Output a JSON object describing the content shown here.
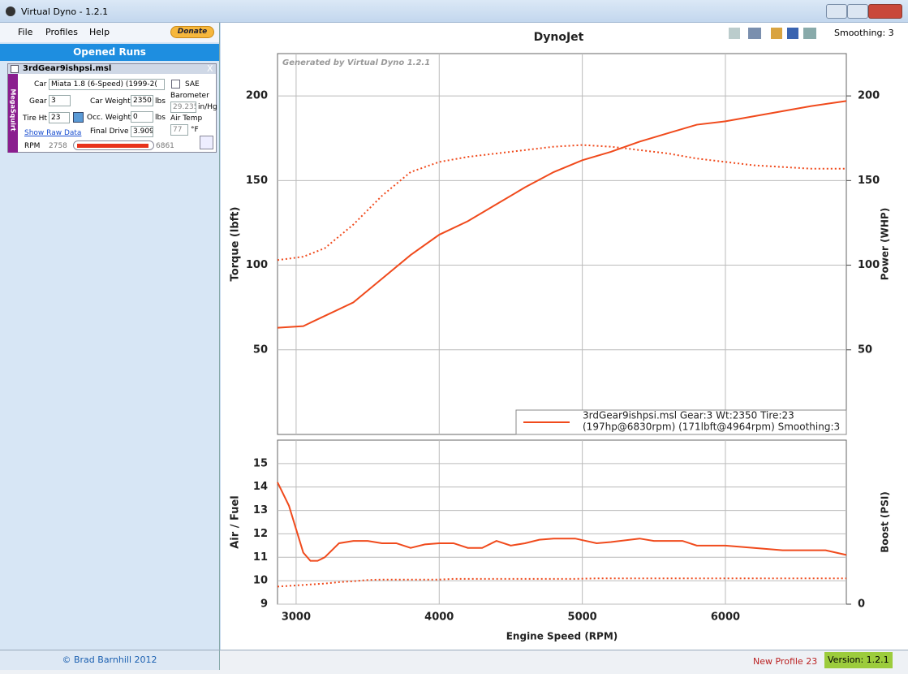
{
  "window": {
    "title": "Virtual Dyno - 1.2.1"
  },
  "menu": [
    "File",
    "Profiles",
    "Help"
  ],
  "donate": "Donate",
  "runs_header": "Opened Runs",
  "run": {
    "file": "3rdGear9ishpsi.msl",
    "close": "X",
    "ecu": "MegaSquirt",
    "car_label": "Car",
    "car": "Miata 1.8 (6-Speed) (1999-2(",
    "sae": "SAE",
    "gear_label": "Gear",
    "gear": "3",
    "car_weight_label": "Car Weight",
    "car_weight": "2350",
    "lbs": "lbs",
    "barometer_label": "Barometer",
    "barometer": "29.235",
    "barometer_unit": "in/Hg",
    "tire_label": "Tire Ht",
    "tire": "23",
    "occ_weight_label": "Occ. Weight",
    "occ_weight": "0",
    "air_temp_label": "Air Temp",
    "air_temp": "77",
    "air_temp_unit": "°F",
    "raw_data": "Show Raw Data",
    "final_drive_label": "Final Drive",
    "final_drive": "3.909",
    "rpm_label": "RPM",
    "rpm_min": "2758",
    "rpm_max": "6861"
  },
  "toolbar": {
    "smoothing": "Smoothing: 3"
  },
  "status": {
    "copyright": "© Brad Barnhill 2012",
    "profile": "New Profile 23",
    "version": "Version: 1.2.1"
  },
  "chart_data": [
    {
      "type": "line",
      "title": "DynoJet",
      "annotation": "Generated by Virtual Dyno 1.2.1",
      "ylabel": "Torque (lbft)",
      "y2label": "Power (WHP)",
      "x": [
        2870,
        3050,
        3200,
        3400,
        3600,
        3800,
        4000,
        4200,
        4400,
        4600,
        4800,
        5000,
        5200,
        5400,
        5600,
        5800,
        6000,
        6200,
        6400,
        6600,
        6845
      ],
      "series": [
        {
          "color": "#f04a1c",
          "style": "dotted",
          "values": [
            103,
            105,
            110,
            124,
            141,
            155,
            161,
            164,
            166,
            168,
            170,
            171,
            170,
            168,
            166,
            163,
            161,
            159,
            158,
            157,
            157
          ]
        },
        {
          "color": "#f04a1c",
          "style": "solid",
          "axis": "y2",
          "values": [
            63,
            64,
            70,
            78,
            92,
            106,
            118,
            126,
            136,
            146,
            155,
            162,
            167,
            173,
            178,
            183,
            185,
            188,
            191,
            194,
            197
          ]
        }
      ],
      "legend": [
        "3rdGear9ishpsi.msl Gear:3 Wt:2350 Tire:23",
        "(197hp@6830rpm) (171lbft@4964rpm) Smoothing:3"
      ],
      "xlim": [
        2870,
        6845
      ],
      "xticks": [
        3000,
        4000,
        5000,
        6000
      ],
      "ylim": [
        0,
        225
      ],
      "yticks": [
        50,
        100,
        150,
        200
      ],
      "y2lim": [
        0,
        225
      ],
      "y2ticks": [
        50,
        100,
        150,
        200
      ],
      "grid": true
    },
    {
      "type": "line",
      "ylabel": "Air / Fuel",
      "y2label": "Boost (PSI)",
      "xlabel": "Engine Speed (RPM)",
      "x": [
        2870,
        2950,
        3000,
        3050,
        3100,
        3150,
        3200,
        3300,
        3400,
        3500,
        3600,
        3700,
        3800,
        3900,
        4000,
        4100,
        4200,
        4300,
        4400,
        4500,
        4600,
        4700,
        4800,
        4950,
        5100,
        5200,
        5400,
        5500,
        5700,
        5800,
        6000,
        6200,
        6400,
        6600,
        6700,
        6845
      ],
      "series": [
        {
          "color": "#f04a1c",
          "style": "solid",
          "values": [
            14.2,
            13.2,
            12.2,
            11.2,
            10.85,
            10.85,
            11.0,
            11.6,
            11.7,
            11.7,
            11.6,
            11.6,
            11.4,
            11.55,
            11.6,
            11.6,
            11.4,
            11.4,
            11.7,
            11.5,
            11.6,
            11.75,
            11.8,
            11.8,
            11.6,
            11.65,
            11.8,
            11.7,
            11.7,
            11.5,
            11.5,
            11.4,
            11.3,
            11.3,
            11.3,
            11.1
          ]
        },
        {
          "color": "#f04a1c",
          "style": "dotted",
          "values": [
            9.75,
            9.78,
            9.8,
            9.82,
            9.84,
            9.86,
            9.88,
            9.94,
            9.98,
            10.03,
            10.05,
            10.05,
            10.05,
            10.05,
            10.05,
            10.08,
            10.08,
            10.08,
            10.08,
            10.08,
            10.08,
            10.08,
            10.08,
            10.08,
            10.1,
            10.1,
            10.1,
            10.1,
            10.1,
            10.1,
            10.1,
            10.1,
            10.1,
            10.1,
            10.1,
            10.1
          ]
        }
      ],
      "xlim": [
        2870,
        6845
      ],
      "xticks": [
        3000,
        4000,
        5000,
        6000
      ],
      "ylim": [
        9,
        16
      ],
      "yticks": [
        9,
        10,
        11,
        12,
        13,
        14,
        15
      ],
      "y2lim": [
        0,
        7
      ],
      "y2ticks": [
        0
      ],
      "grid": true
    }
  ]
}
